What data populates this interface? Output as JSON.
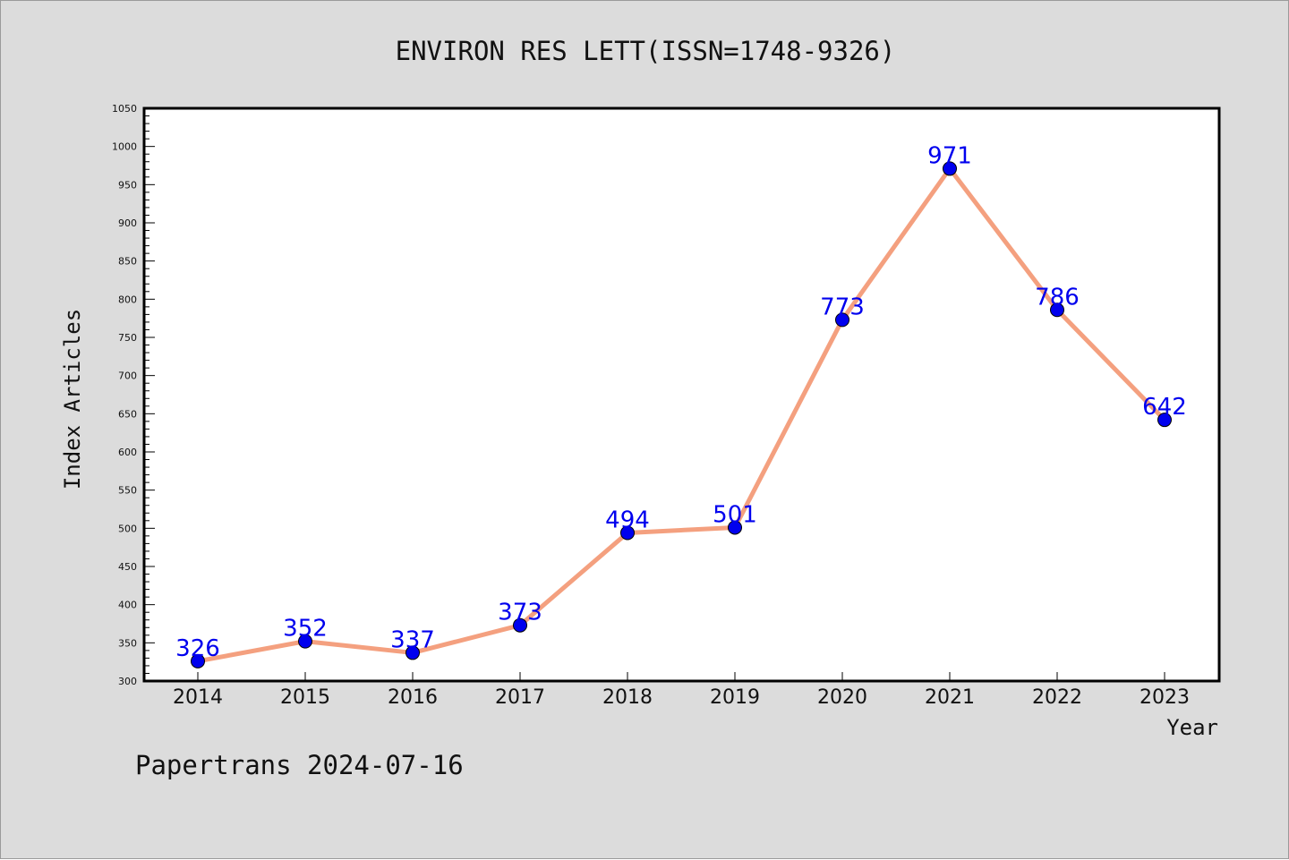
{
  "chart_data": {
    "type": "line",
    "title": "ENVIRON RES LETT(ISSN=1748-9326)",
    "xlabel": "Year",
    "ylabel": "Index Articles",
    "categories": [
      "2014",
      "2015",
      "2016",
      "2017",
      "2018",
      "2019",
      "2020",
      "2021",
      "2022",
      "2023"
    ],
    "values": [
      326,
      352,
      337,
      373,
      494,
      501,
      773,
      971,
      786,
      642
    ],
    "ylim": [
      300,
      1050
    ],
    "yticks": [
      300,
      350,
      400,
      450,
      500,
      550,
      600,
      650,
      700,
      750,
      800,
      850,
      900,
      950,
      1000,
      1050
    ],
    "grid": false,
    "data_labels": true,
    "colors": {
      "line": "#f4a07f",
      "marker": "#0000ee",
      "label": "#0000ee",
      "background": "#dcdcdc",
      "plot_background": "#ffffff"
    }
  },
  "footer": {
    "text": "Papertrans 2024-07-16"
  }
}
